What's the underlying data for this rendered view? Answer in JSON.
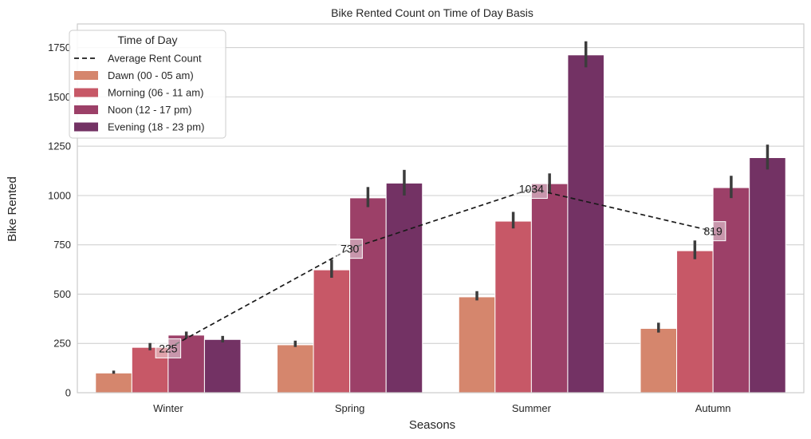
{
  "chart_data": {
    "type": "bar",
    "title": "Bike Rented Count on Time of Day Basis",
    "xlabel": "Seasons",
    "ylabel": "Bike Rented",
    "categories": [
      "Winter",
      "Spring",
      "Summer",
      "Autumn"
    ],
    "ylim": [
      0,
      1870
    ],
    "yticks": [
      0,
      250,
      500,
      750,
      1000,
      1250,
      1500,
      1750
    ],
    "grid": true,
    "legend": {
      "title": "Time of Day",
      "placement": "top-left"
    },
    "series": [
      {
        "name": "Dawn (00 - 05 am)",
        "color": "#d5866d",
        "values": [
          100,
          243,
          486,
          326
        ],
        "error_low": [
          96,
          232,
          468,
          305
        ],
        "error_high": [
          112,
          264,
          515,
          355
        ]
      },
      {
        "name": "Morning (06 - 11 am)",
        "color": "#c75867",
        "values": [
          230,
          623,
          870,
          720
        ],
        "error_low": [
          215,
          583,
          833,
          677
        ],
        "error_high": [
          252,
          675,
          917,
          772
        ]
      },
      {
        "name": "Noon (12 - 17 pm)",
        "color": "#9c4068",
        "values": [
          292,
          988,
          1060,
          1040
        ],
        "error_low": [
          275,
          941,
          1010,
          987
        ],
        "error_high": [
          310,
          1043,
          1112,
          1100
        ]
      },
      {
        "name": "Evening (18 - 23 pm)",
        "color": "#733264",
        "values": [
          270,
          1063,
          1713,
          1192
        ],
        "error_low": [
          255,
          1000,
          1650,
          1132
        ],
        "error_high": [
          288,
          1130,
          1782,
          1258
        ]
      }
    ],
    "average_line": {
      "name": "Average Rent Count",
      "color": "#1a1a1a",
      "values": [
        225,
        730,
        1034,
        819
      ],
      "labels": [
        "225",
        "730",
        "1034",
        "819"
      ]
    }
  }
}
